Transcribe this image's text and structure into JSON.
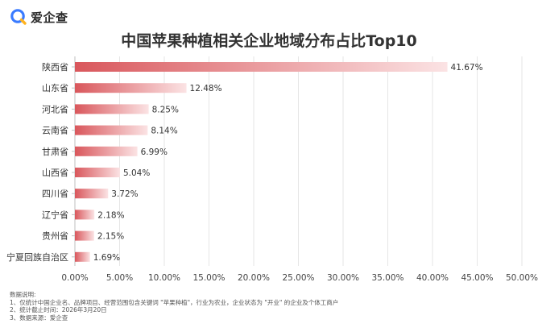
{
  "brand": {
    "name": "爱企查",
    "icon": "magnifier-logo-icon",
    "colors": {
      "ring": "#3a7bff",
      "accent": "#ffb21e"
    }
  },
  "chart_data": {
    "type": "bar",
    "orientation": "horizontal",
    "title": "中国苹果种植相关企业地域分布占比Top10",
    "categories": [
      "陕西省",
      "山东省",
      "河北省",
      "云南省",
      "甘肃省",
      "山西省",
      "四川省",
      "辽宁省",
      "贵州省",
      "宁夏回族自治区"
    ],
    "values": [
      41.67,
      12.48,
      8.25,
      8.14,
      6.99,
      5.04,
      3.72,
      2.18,
      2.15,
      1.69
    ],
    "value_labels": [
      "41.67%",
      "12.48%",
      "8.25%",
      "8.14%",
      "6.99%",
      "5.04%",
      "3.72%",
      "2.18%",
      "2.15%",
      "1.69%"
    ],
    "x_ticks": [
      "0.00%",
      "5.00%",
      "10.00%",
      "15.00%",
      "20.00%",
      "25.00%",
      "30.00%",
      "35.00%",
      "40.00%",
      "45.00%",
      "50.00%"
    ],
    "xlim": [
      0,
      50
    ],
    "grid": true,
    "bar_color": "#d9575c",
    "bar_color_fade": "#fbe3e4"
  },
  "notes": {
    "heading": "数据说明:",
    "lines": [
      "1、仅统计中国企业名、品牌项目、经营范围包含关键词 \"苹果种植\"，行业为农业，企业状态为 \"开业\" 的企业及个体工商户",
      "2、统计截止时间：2026年3月20日",
      "3、数据来源：爱企查"
    ]
  }
}
